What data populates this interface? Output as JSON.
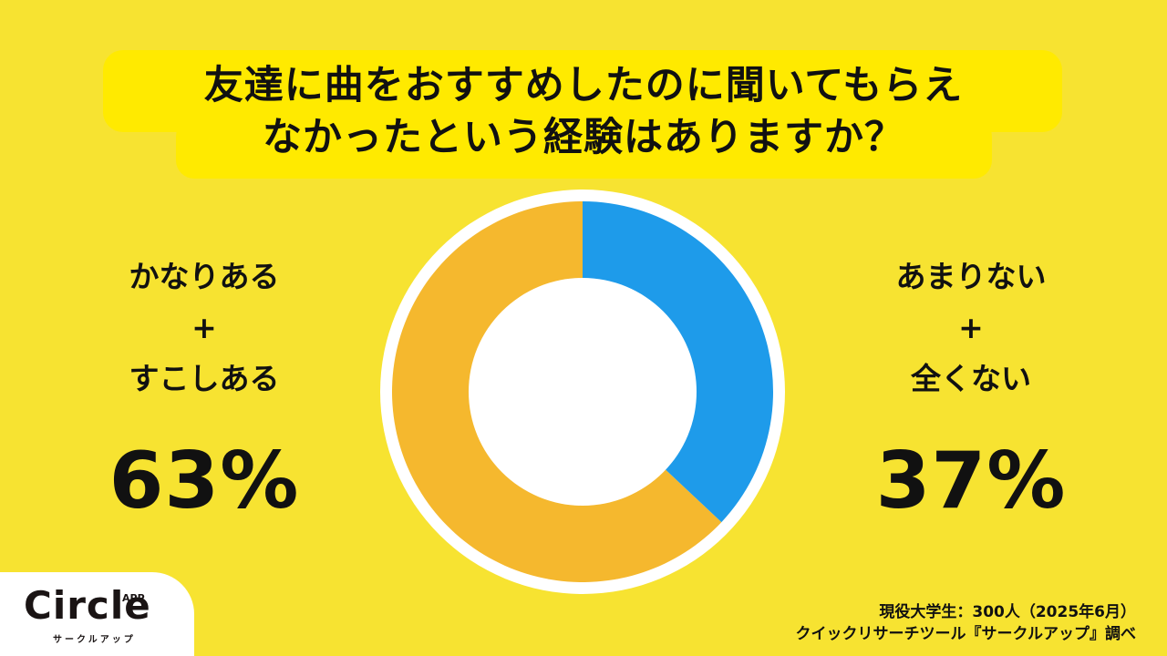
{
  "title": {
    "line1": "友達に曲をおすすめしたのに聞いてもらえ",
    "line2": "なかったという経験はありますか？"
  },
  "left_group": {
    "label_line1": "かなりある",
    "plus": "+",
    "label_line2": "すこしある",
    "percent": "63%"
  },
  "right_group": {
    "label_line1": "あまりない",
    "plus": "+",
    "label_line2": "全くない",
    "percent": "37%"
  },
  "source": {
    "line1": "現役大学生：300人（2025年6月）",
    "line2": "クイックリサーチツール『サークルアップ』調べ"
  },
  "logo": {
    "word": "Circle",
    "superscript": "APP",
    "kana": "サークルアップ"
  },
  "colors": {
    "background": "#F7E331",
    "highlight": "#FFEA00",
    "yes_segment": "#F5B82E",
    "no_segment": "#1E9BEA"
  },
  "chart_data": {
    "type": "pie",
    "subtype": "donut",
    "title": "友達に曲をおすすめしたのに聞いてもらえなかったという経験はありますか？",
    "categories": [
      "かなりある+すこしある",
      "あまりない+全くない"
    ],
    "values": [
      63,
      37
    ],
    "unit": "%",
    "colors": [
      "#F5B82E",
      "#1E9BEA"
    ],
    "start_angle": "top, clockwise: あまりない+全くない first",
    "legend": "labels placed left (63%) and right (37%) of donut",
    "sample": "現役大学生 300人 (2025年6月)"
  }
}
